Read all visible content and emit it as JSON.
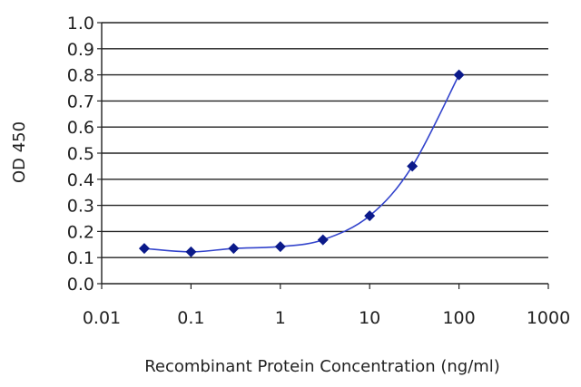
{
  "chart_data": {
    "type": "scatter",
    "title": "",
    "xlabel": "Recombinant Protein Concentration (ng/ml)",
    "ylabel": "OD 450",
    "x_scale": "log",
    "xlim": [
      0.01,
      1000
    ],
    "ylim": [
      0.0,
      1.0
    ],
    "x_ticks": [
      0.01,
      0.1,
      1,
      10,
      100,
      1000
    ],
    "x_tick_labels": [
      "0.01",
      "0.1",
      "1",
      "10",
      "100",
      "1000"
    ],
    "y_ticks": [
      0.0,
      0.1,
      0.2,
      0.3,
      0.4,
      0.5,
      0.6,
      0.7,
      0.8,
      0.9,
      1.0
    ],
    "y_tick_labels": [
      "0.0",
      "0.1",
      "0.2",
      "0.3",
      "0.4",
      "0.5",
      "0.6",
      "0.7",
      "0.8",
      "0.9",
      "1.0"
    ],
    "grid": "horizontal",
    "legend": "none",
    "series": [
      {
        "x": [
          0.03,
          0.1,
          0.3,
          1,
          3,
          10,
          30,
          100
        ],
        "y": [
          0.135,
          0.122,
          0.135,
          0.142,
          0.168,
          0.26,
          0.45,
          0.8
        ],
        "fit_curve": true
      }
    ],
    "colors": {
      "marker": "#0b1a8a",
      "curve": "#3344cc",
      "grid": "#222222",
      "axis": "#222222"
    }
  }
}
